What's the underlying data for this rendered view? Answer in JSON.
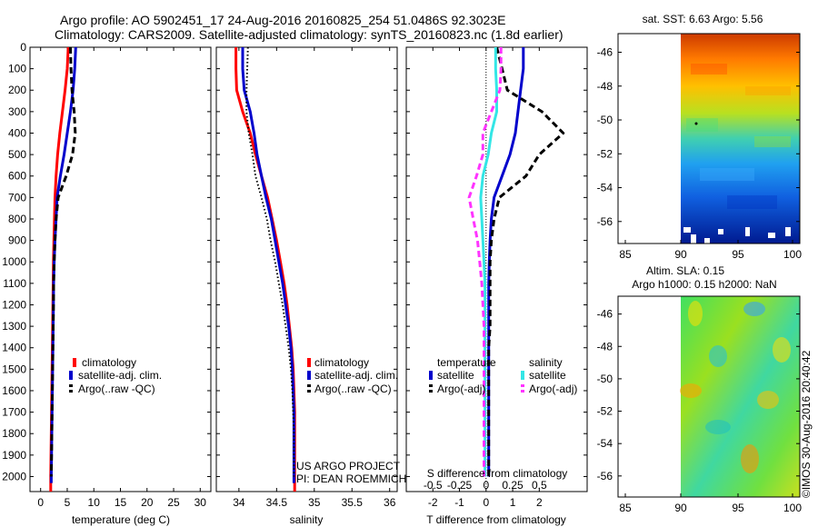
{
  "title_line1": "Argo profile: AO 5902451_17 24-Aug-2016 20160825_254 51.0486S 92.3023E",
  "title_line2": "Climatology: CARS2009. Satellite-adjusted climatology: synTS_20160823.nc (1.8d earlier)",
  "depth_ticks": [
    0,
    100,
    200,
    300,
    400,
    500,
    600,
    700,
    800,
    900,
    1000,
    1100,
    1200,
    1300,
    1400,
    1500,
    1600,
    1700,
    1800,
    1900,
    2000
  ],
  "legend": {
    "climatology": "climatology",
    "satellite": "satellite-adj. clim.",
    "argo": "Argo(..raw -QC)",
    "temperature_header": "temperature",
    "salinity_header": "salinity",
    "sat_short": "satellite",
    "argo_adj": "Argo(-adj)"
  },
  "credit_line1": "US ARGO PROJECT",
  "credit_line2": "PI: DEAN ROEMMICH",
  "map1_title": "sat. SST: 6.63 Argo: 5.56",
  "map2_title_line1": "Altim. SLA: 0.15",
  "map2_title_line2": "Argo h1000: 0.15 h2000: NaN",
  "map_lat_ticks": [
    "-46",
    "-48",
    "-50",
    "-52",
    "-54",
    "-56"
  ],
  "map_lon_ticks": [
    "85",
    "90",
    "95",
    "100"
  ],
  "watermark": "©IMOS 30-Aug-2016 20:40:42",
  "colors": {
    "red": "#ff0000",
    "blue": "#0000cc",
    "cyan": "#33e6e6",
    "magenta": "#ff33ff",
    "black": "#000000"
  },
  "chart_data": [
    {
      "type": "line",
      "name": "temperature",
      "xlabel": "temperature (deg C)",
      "ylabel": "depth",
      "xlim": [
        -2,
        32
      ],
      "ylim": [
        2070,
        0
      ],
      "xticks": [
        0,
        5,
        10,
        15,
        20,
        25,
        30
      ],
      "series": [
        {
          "name": "climatology",
          "color": "#ff0000",
          "style": "solid",
          "x": [
            5.2,
            5.0,
            4.6,
            4.1,
            3.6,
            3.2,
            2.9,
            2.7,
            2.6,
            2.5,
            2.4,
            2.35,
            2.3,
            2.25,
            2.2,
            2.15,
            2.1,
            2.05,
            2.0,
            1.95,
            1.9,
            1.9
          ],
          "y": [
            0,
            100,
            200,
            300,
            400,
            500,
            600,
            700,
            800,
            900,
            1000,
            1100,
            1200,
            1300,
            1400,
            1500,
            1600,
            1700,
            1800,
            1900,
            2000,
            2070
          ]
        },
        {
          "name": "satellite-adj. clim.",
          "color": "#0000cc",
          "style": "solid",
          "x": [
            6.6,
            6.4,
            6.1,
            5.6,
            5.0,
            4.4,
            3.7,
            3.1,
            2.9,
            2.7,
            2.55,
            2.45,
            2.4,
            2.35,
            2.3,
            2.25,
            2.2,
            2.15,
            2.1,
            2.05,
            2.0,
            2.0
          ],
          "y": [
            0,
            100,
            200,
            300,
            400,
            500,
            600,
            700,
            800,
            900,
            1000,
            1100,
            1200,
            1300,
            1400,
            1500,
            1600,
            1700,
            1800,
            1900,
            2000,
            2030
          ]
        },
        {
          "name": "Argo(..raw -QC)",
          "color": "#000000",
          "style": "dashed",
          "x": [
            5.6,
            5.7,
            5.9,
            6.3,
            6.5,
            6.0,
            4.8,
            3.3,
            2.9,
            2.7,
            2.55,
            2.45,
            2.4,
            2.35,
            2.3,
            2.25,
            2.2,
            2.15,
            2.1,
            2.05,
            2.0
          ],
          "y": [
            0,
            100,
            200,
            300,
            400,
            500,
            600,
            700,
            800,
            900,
            1000,
            1100,
            1200,
            1300,
            1400,
            1500,
            1600,
            1700,
            1800,
            1900,
            2000
          ]
        }
      ]
    },
    {
      "type": "line",
      "name": "salinity",
      "xlabel": "salinity",
      "xlim": [
        33.7,
        36.1
      ],
      "ylim": [
        2070,
        0
      ],
      "xticks": [
        34,
        34.5,
        35,
        35.5,
        36
      ],
      "series": [
        {
          "name": "climatology",
          "color": "#ff0000",
          "style": "solid",
          "x": [
            33.96,
            33.96,
            33.97,
            34.05,
            34.15,
            34.22,
            34.3,
            34.38,
            34.44,
            34.5,
            34.55,
            34.6,
            34.64,
            34.67,
            34.7,
            34.72,
            34.73,
            34.74,
            34.74,
            34.74,
            34.74,
            34.74
          ],
          "y": [
            0,
            100,
            200,
            300,
            400,
            500,
            600,
            700,
            800,
            900,
            1000,
            1100,
            1200,
            1300,
            1400,
            1500,
            1600,
            1700,
            1800,
            1900,
            2000,
            2070
          ]
        },
        {
          "name": "satellite-adj. clim.",
          "color": "#0000cc",
          "style": "solid",
          "x": [
            34.05,
            34.05,
            34.07,
            34.15,
            34.2,
            34.24,
            34.3,
            34.36,
            34.43,
            34.48,
            34.53,
            34.58,
            34.62,
            34.66,
            34.69,
            34.71,
            34.72,
            34.73,
            34.73,
            34.73,
            34.73,
            34.73
          ],
          "y": [
            0,
            100,
            200,
            300,
            400,
            500,
            600,
            700,
            800,
            900,
            1000,
            1100,
            1200,
            1300,
            1400,
            1500,
            1600,
            1700,
            1800,
            1900,
            2000,
            2030
          ]
        },
        {
          "name": "Argo(..raw -QC)",
          "color": "#000000",
          "style": "dotted",
          "x": [
            34.12,
            34.11,
            34.1,
            34.1,
            34.13,
            34.18,
            34.22,
            34.3,
            34.37,
            34.42,
            34.48,
            34.53,
            34.58,
            34.62,
            34.66,
            34.69,
            34.71,
            34.72,
            34.73,
            34.73,
            34.73
          ],
          "y": [
            0,
            100,
            200,
            300,
            400,
            500,
            600,
            700,
            800,
            900,
            1000,
            1100,
            1200,
            1300,
            1400,
            1500,
            1600,
            1700,
            1800,
            1900,
            2000
          ]
        }
      ]
    },
    {
      "type": "line",
      "name": "difference",
      "xlabel": "T difference from climatology",
      "xlabel2": "S difference from climatology",
      "xlim": [
        -3,
        3.8
      ],
      "ylim": [
        2070,
        0
      ],
      "xticks": [
        -2,
        -1,
        0,
        1,
        2
      ],
      "xticks_s": [
        -0.5,
        -0.25,
        0,
        0.25,
        0.5
      ],
      "legend_pos": "lower-center",
      "series": [
        {
          "name": "temperature satellite",
          "color": "#0000cc",
          "style": "solid",
          "x": [
            1.4,
            1.4,
            1.3,
            1.2,
            1.1,
            0.9,
            0.6,
            0.3,
            0.2,
            0.15,
            0.12,
            0.1,
            0.1,
            0.1,
            0.1,
            0.1,
            0.1,
            0.1,
            0.1,
            0.1,
            0.1
          ],
          "y": [
            0,
            100,
            200,
            300,
            400,
            500,
            600,
            700,
            800,
            900,
            1000,
            1100,
            1200,
            1300,
            1400,
            1500,
            1600,
            1700,
            1800,
            1900,
            2000
          ]
        },
        {
          "name": "temperature Argo(-adj)",
          "color": "#000000",
          "style": "dashed",
          "x": [
            0.4,
            0.6,
            0.8,
            2.1,
            2.9,
            2.0,
            1.5,
            0.5,
            0.3,
            0.2,
            0.15,
            0.15,
            0.15,
            0.15,
            0.1,
            0.1,
            0.1,
            0.1,
            0.1,
            0.1,
            0.1
          ],
          "y": [
            0,
            100,
            200,
            300,
            400,
            500,
            600,
            700,
            800,
            900,
            1000,
            1100,
            1200,
            1300,
            1400,
            1500,
            1600,
            1700,
            1800,
            1900,
            2000
          ]
        },
        {
          "name": "salinity satellite",
          "color": "#33e6e6",
          "style": "solid",
          "x": [
            0.09,
            0.09,
            0.1,
            0.1,
            0.05,
            0.02,
            -0.03,
            -0.05,
            -0.04,
            -0.03,
            -0.02,
            -0.01,
            -0.01,
            -0.01,
            -0.01,
            -0.01,
            -0.01,
            -0.01,
            -0.01,
            -0.01,
            -0.01
          ],
          "y": [
            0,
            100,
            200,
            300,
            400,
            500,
            600,
            700,
            800,
            900,
            1000,
            1100,
            1200,
            1300,
            1400,
            1500,
            1600,
            1700,
            1800,
            1900,
            2000
          ]
        },
        {
          "name": "salinity Argo(-adj)",
          "color": "#ff33ff",
          "style": "dashed",
          "x": [
            0.14,
            0.14,
            0.13,
            0.05,
            -0.03,
            -0.03,
            -0.09,
            -0.16,
            -0.12,
            -0.08,
            -0.06,
            -0.04,
            -0.03,
            -0.02,
            -0.02,
            -0.02,
            -0.02,
            -0.02,
            -0.02,
            -0.02,
            -0.02
          ],
          "y": [
            0,
            100,
            200,
            300,
            400,
            500,
            600,
            700,
            800,
            900,
            1000,
            1100,
            1200,
            1300,
            1400,
            1500,
            1600,
            1700,
            1800,
            1900,
            2000
          ]
        }
      ]
    }
  ]
}
